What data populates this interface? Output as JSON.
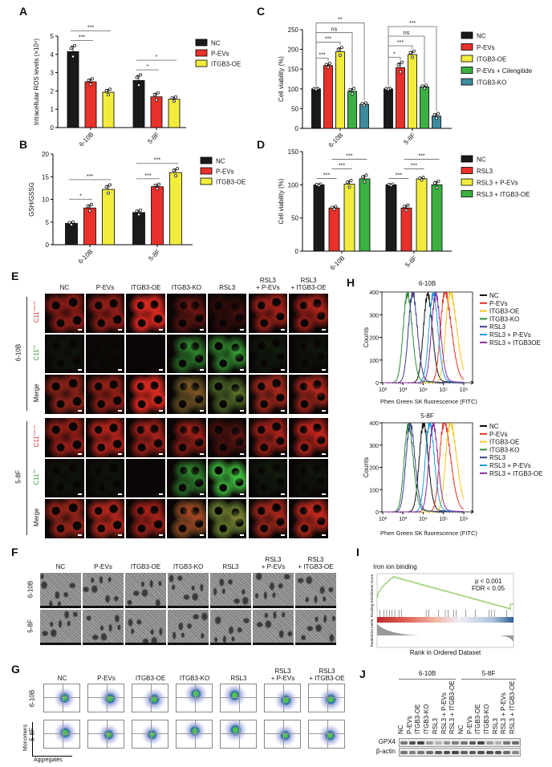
{
  "panels": {
    "A": {
      "letter": "A"
    },
    "B": {
      "letter": "B"
    },
    "C": {
      "letter": "C"
    },
    "D": {
      "letter": "D"
    },
    "E": {
      "letter": "E",
      "columns": [
        "NC",
        "P-EVs",
        "ITGB3-OE",
        "ITGB3-KO",
        "RSL3",
        "RSL3\n+ P-EVs",
        "RSL3\n+ ITGB3-OE"
      ],
      "groups": [
        {
          "name": "6-10B",
          "rows": [
            {
              "main": "C11",
              "sup": "Non-ox",
              "channel": "red"
            },
            {
              "main": "C11",
              "sup": "Ox",
              "channel": "green"
            },
            {
              "main": "Merge",
              "sup": "",
              "channel": "merge"
            }
          ]
        },
        {
          "name": "5-8F",
          "rows": [
            {
              "main": "C11",
              "sup": "Non-ox",
              "channel": "red"
            },
            {
              "main": "C11",
              "sup": "Ox",
              "channel": "green"
            },
            {
              "main": "Merge",
              "sup": "",
              "channel": "merge"
            }
          ]
        }
      ]
    },
    "F": {
      "letter": "F",
      "columns": [
        "NC",
        "P-EVs",
        "ITGB3-OE",
        "ITGB3-KO",
        "RSL3",
        "RSL3\n+ P-EVs",
        "RSL3\n+ ITGB3-OE"
      ],
      "rows": [
        "6-10B",
        "5-8F"
      ]
    },
    "G": {
      "letter": "G",
      "columns": [
        "NC",
        "P-EVs",
        "ITGB3-OE",
        "ITGB3-KO",
        "RSL3",
        "RSL3\n+ P-EVs",
        "RSL3\n+ ITGB3-OE"
      ],
      "rows": [
        "6-10B",
        "5-8F"
      ],
      "y_axis": "Monomers",
      "x_axis": "Aggregates"
    },
    "H": {
      "letter": "H"
    },
    "I": {
      "letter": "I"
    },
    "J": {
      "letter": "J",
      "groups": [
        "6-10B",
        "5-8F"
      ],
      "lanes": [
        "NC",
        "P-EVs",
        "ITGB3-OE",
        "ITGB3-KO",
        "RSL3",
        "RSL3 + P-EVs",
        "RSL3 + ITGB3-OE",
        "NC",
        "P-EVs",
        "ITGB3-OE",
        "ITGB3-KO",
        "RSL3",
        "RSL3 + P-EVs",
        "RSL3 + ITGB3-OE"
      ],
      "blots": [
        "GPX4",
        "β-actin"
      ]
    }
  },
  "chart_data": [
    {
      "panel": "A",
      "type": "bar",
      "ylabel": "Intracellular ROS levels (×10⁴)",
      "categories": [
        "6-10B",
        "5-8F"
      ],
      "ylim": [
        0,
        5
      ],
      "yticks": [
        "0",
        "1",
        "2",
        "3",
        "4",
        "5"
      ],
      "series": [
        {
          "name": "NC",
          "color": "#1a1a1a",
          "values": [
            4.15,
            2.57
          ],
          "errors": [
            0.3,
            0.28
          ]
        },
        {
          "name": "P-EVs",
          "color": "#e8312a",
          "values": [
            2.5,
            1.68
          ],
          "errors": [
            0.15,
            0.2
          ]
        },
        {
          "name": "ITGB3-OE",
          "color": "#f2ec3c",
          "values": [
            1.93,
            1.55
          ],
          "errors": [
            0.15,
            0.12
          ]
        }
      ],
      "significance": [
        {
          "category": "6-10B",
          "from": "NC",
          "to": "P-EVs",
          "label": "***"
        },
        {
          "category": "6-10B",
          "from": "NC",
          "to": "ITGB3-OE",
          "label": "***"
        },
        {
          "category": "5-8F",
          "from": "NC",
          "to": "P-EVs",
          "label": "*"
        },
        {
          "category": "5-8F",
          "from": "NC",
          "to": "ITGB3-OE",
          "label": "*"
        }
      ]
    },
    {
      "panel": "B",
      "type": "bar",
      "ylabel": "GSH/GSSG",
      "categories": [
        "6-10B",
        "5-8F"
      ],
      "ylim": [
        0,
        20
      ],
      "yticks": [
        "0",
        "5",
        "10",
        "15",
        "20"
      ],
      "series": [
        {
          "name": "NC",
          "color": "#1a1a1a",
          "values": [
            4.7,
            7.1
          ],
          "errors": [
            0.3,
            0.5
          ]
        },
        {
          "name": "P-EVs",
          "color": "#e8312a",
          "values": [
            8.1,
            12.8
          ],
          "errors": [
            0.7,
            0.5
          ]
        },
        {
          "name": "ITGB3-OE",
          "color": "#f2ec3c",
          "values": [
            12.2,
            15.9
          ],
          "errors": [
            0.9,
            0.8
          ]
        }
      ],
      "significance": [
        {
          "category": "6-10B",
          "from": "NC",
          "to": "P-EVs",
          "label": "*"
        },
        {
          "category": "6-10B",
          "from": "NC",
          "to": "ITGB3-OE",
          "label": "***"
        },
        {
          "category": "5-8F",
          "from": "NC",
          "to": "P-EVs",
          "label": "***"
        },
        {
          "category": "5-8F",
          "from": "NC",
          "to": "ITGB3-OE",
          "label": "***"
        }
      ]
    },
    {
      "panel": "C",
      "type": "bar",
      "ylabel": "Cell viability (%)",
      "categories": [
        "6-10B",
        "5-8F"
      ],
      "ylim": [
        0,
        250
      ],
      "yticks": [
        "0",
        "50",
        "100",
        "150",
        "200",
        "250"
      ],
      "series": [
        {
          "name": "NC",
          "color": "#1a1a1a",
          "values": [
            100,
            100
          ],
          "errors": [
            1,
            1
          ]
        },
        {
          "name": "P-EVs",
          "color": "#e8312a",
          "values": [
            159,
            154
          ],
          "errors": [
            5,
            12
          ]
        },
        {
          "name": "ITGB3-OE",
          "color": "#f2ec3c",
          "values": [
            194,
            187
          ],
          "errors": [
            10,
            8
          ]
        },
        {
          "name": "P-EVs + Cilengitide",
          "color": "#3cb043",
          "values": [
            94,
            105
          ],
          "errors": [
            7,
            4
          ]
        },
        {
          "name": "ITGB3-KO",
          "color": "#3d8a9c",
          "values": [
            61,
            31
          ],
          "errors": [
            3,
            6
          ]
        }
      ],
      "significance": [
        {
          "category": "6-10B",
          "from": "NC",
          "to": "P-EVs",
          "label": "***"
        },
        {
          "category": "6-10B",
          "from": "NC",
          "to": "ITGB3-OE",
          "label": "***"
        },
        {
          "category": "6-10B",
          "from": "NC",
          "to": "P-EVs + Cilengitide",
          "label": "ns"
        },
        {
          "category": "6-10B",
          "from": "NC",
          "to": "ITGB3-KO",
          "label": "**"
        },
        {
          "category": "5-8F",
          "from": "NC",
          "to": "P-EVs",
          "label": "*"
        },
        {
          "category": "5-8F",
          "from": "NC",
          "to": "ITGB3-OE",
          "label": "***"
        },
        {
          "category": "5-8F",
          "from": "NC",
          "to": "P-EVs + Cilengitide",
          "label": "ns"
        },
        {
          "category": "5-8F",
          "from": "NC",
          "to": "ITGB3-KO",
          "label": "***"
        }
      ]
    },
    {
      "panel": "D",
      "type": "bar",
      "ylabel": "Cell viability (%)",
      "categories": [
        "6-10B",
        "5-8F"
      ],
      "ylim": [
        0,
        150
      ],
      "yticks": [
        "0",
        "50",
        "100",
        "150"
      ],
      "series": [
        {
          "name": "NC",
          "color": "#1a1a1a",
          "values": [
            100,
            100
          ],
          "errors": [
            1,
            1
          ]
        },
        {
          "name": "RSL3",
          "color": "#e8312a",
          "values": [
            65,
            65
          ],
          "errors": [
            2,
            4
          ]
        },
        {
          "name": "RSL3 + P-EVs",
          "color": "#f2ec3c",
          "values": [
            101,
            109
          ],
          "errors": [
            5,
            2
          ]
        },
        {
          "name": "RSL3 + ITGB3-OE",
          "color": "#3cb043",
          "values": [
            109,
            100
          ],
          "errors": [
            5,
            5
          ]
        }
      ],
      "significance": [
        {
          "category": "6-10B",
          "from": "NC",
          "to": "RSL3",
          "label": "***"
        },
        {
          "category": "6-10B",
          "from": "RSL3",
          "to": "RSL3 + P-EVs",
          "label": "***"
        },
        {
          "category": "6-10B",
          "from": "RSL3",
          "to": "RSL3 + ITGB3-OE",
          "label": "***"
        },
        {
          "category": "5-8F",
          "from": "NC",
          "to": "RSL3",
          "label": "***"
        },
        {
          "category": "5-8F",
          "from": "RSL3",
          "to": "RSL3 + P-EVs",
          "label": "***"
        },
        {
          "category": "5-8F",
          "from": "RSL3",
          "to": "RSL3 + ITGB3-OE",
          "label": "***"
        }
      ]
    },
    {
      "panel": "H",
      "type": "line",
      "title": "6-10B",
      "xlabel": "Phen Green SK  fluorescence (FITC)",
      "ylabel": "Counts",
      "xscale": "log",
      "xlim": [
        100,
        1000000
      ],
      "ylim": [
        0,
        400
      ],
      "xticks": [
        "10²",
        "10³",
        "10⁴",
        "10⁵",
        "10⁶"
      ],
      "yticks": [
        "0",
        "100",
        "200",
        "300",
        "400"
      ],
      "legend": "right",
      "series": [
        {
          "name": "NC",
          "color": "#111111",
          "peak": 16000,
          "peak_count": 380
        },
        {
          "name": "P-EVs",
          "color": "#e8312a",
          "peak": 110000,
          "peak_count": 385
        },
        {
          "name": "ITGB3-OE",
          "color": "#f7c520",
          "peak": 200000,
          "peak_count": 385
        },
        {
          "name": "ITGB3-KO",
          "color": "#2e8b3a",
          "peak": 1600,
          "peak_count": 385
        },
        {
          "name": "RSL3",
          "color": "#3b3b8c",
          "peak": 2900,
          "peak_count": 385
        },
        {
          "name": "RSL3 + P-EVs",
          "color": "#1a9de0",
          "peak": 30000,
          "peak_count": 385
        },
        {
          "name": "RSL3 + ITGB3OE",
          "color": "#8a2a9a",
          "peak": 40000,
          "peak_count": 380
        }
      ]
    },
    {
      "panel": "H",
      "type": "line",
      "title": "5-8F",
      "xlabel": "Phen Green SK  fluorescence (FITC)",
      "ylabel": "Counts",
      "xscale": "log",
      "xlim": [
        100,
        1000000
      ],
      "ylim": [
        0,
        400
      ],
      "xticks": [
        "10²",
        "10³",
        "10⁴",
        "10⁵",
        "10⁶"
      ],
      "yticks": [
        "0",
        "100",
        "200",
        "300",
        "400"
      ],
      "legend": "right",
      "series": [
        {
          "name": "NC",
          "color": "#111111",
          "peak": 10000,
          "peak_count": 390
        },
        {
          "name": "P-EVs",
          "color": "#e8312a",
          "peak": 100000,
          "peak_count": 390
        },
        {
          "name": "ITGB3-OE",
          "color": "#f7c520",
          "peak": 200000,
          "peak_count": 385
        },
        {
          "name": "ITGB3-KO",
          "color": "#2e8b3a",
          "peak": 1800,
          "peak_count": 385
        },
        {
          "name": "RSL3",
          "color": "#3b3b8c",
          "peak": 2200,
          "peak_count": 385
        },
        {
          "name": "RSL3 + P-EVs",
          "color": "#1a9de0",
          "peak": 20000,
          "peak_count": 390
        },
        {
          "name": "RSL3 + ITGB3-OE",
          "color": "#8a2a9a",
          "peak": 30000,
          "peak_count": 385
        }
      ]
    },
    {
      "panel": "I",
      "type": "line",
      "title": "Iron ion binding",
      "xlabel": "Rank in Ordered Dataset",
      "ylabel": "Ranked list metric Running Enrichment Score",
      "stats": [
        "p < 0.001",
        "FDR < 0.05"
      ],
      "curve_color": "#7cc24a"
    }
  ]
}
